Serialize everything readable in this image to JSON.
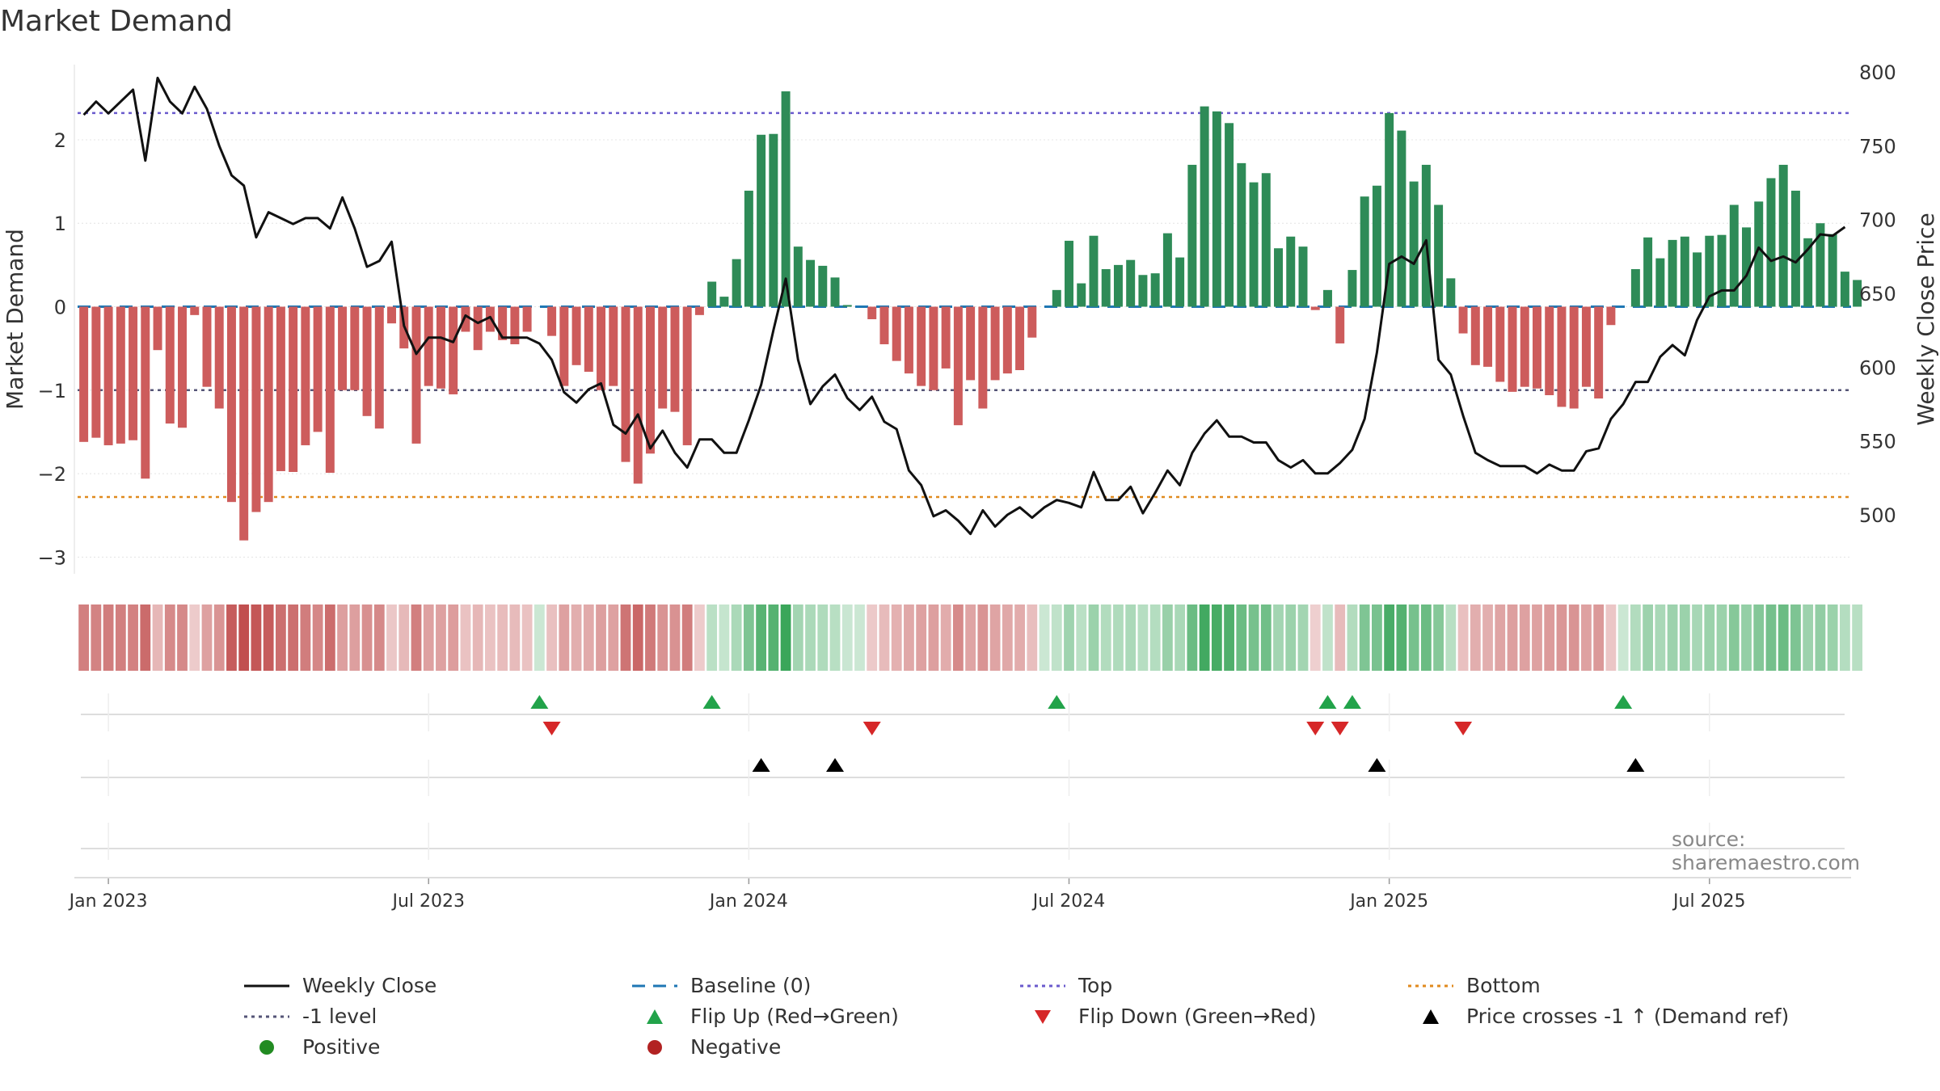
{
  "title": "Market Demand",
  "source": "source: sharemaestro.com",
  "colors": {
    "positive": "#2e8b57",
    "negative": "#cd5c5c",
    "price_line": "#111111",
    "baseline": "#1f77b4",
    "top_line": "#6a5acd",
    "minus1_line": "#555577",
    "bottom_line": "#e08a1e",
    "flip_up": "#22a34a",
    "flip_down": "#d62728",
    "cross": "#000000",
    "legend_positive": "#228b22",
    "legend_negative": "#b22222"
  },
  "legend": {
    "weekly_close": "Weekly Close",
    "baseline": "Baseline (0)",
    "top": "Top",
    "bottom": "Bottom",
    "minus1": "-1 level",
    "flip_up": "Flip Up (Red→Green)",
    "flip_down": "Flip Down (Green→Red)",
    "price_cross": "Price crosses -1 ↑ (Demand ref)",
    "positive": "Positive",
    "negative": "Negative"
  },
  "chart_data": {
    "type": "bar",
    "title": "Market Demand",
    "ylabel": "Market Demand",
    "y2label": "Weekly Close Price",
    "ylim": [
      -3.2,
      2.9
    ],
    "y2lim": [
      460,
      805
    ],
    "yticks": [
      -3,
      -2,
      -1,
      0,
      1,
      2
    ],
    "y2ticks": [
      500,
      550,
      600,
      650,
      700,
      750,
      800
    ],
    "xticks": [
      "Jan 2023",
      "Jul 2023",
      "Jan 2024",
      "Jul 2024",
      "Jan 2025",
      "Jul 2025"
    ],
    "xtick_weeks": [
      2,
      28,
      54,
      80,
      106,
      132
    ],
    "reference_levels": {
      "top": 2.32,
      "minus1": -1.0,
      "bottom": -2.28,
      "baseline": 0
    },
    "weeks": 144,
    "demand": [
      -1.62,
      -1.57,
      -1.66,
      -1.64,
      -1.6,
      -2.06,
      -0.52,
      -1.4,
      -1.45,
      -0.1,
      -0.96,
      -1.22,
      -2.34,
      -2.8,
      -2.46,
      -2.34,
      -1.97,
      -1.98,
      -1.66,
      -1.5,
      -1.99,
      -1.0,
      -1.0,
      -1.31,
      -1.46,
      -0.2,
      -0.5,
      -1.64,
      -0.95,
      -0.98,
      -1.05,
      -0.3,
      -0.52,
      -0.3,
      -0.4,
      -0.45,
      -0.3,
      0,
      -0.35,
      -0.95,
      -0.7,
      -0.78,
      -1.0,
      -0.95,
      -1.86,
      -2.12,
      -1.76,
      -1.22,
      -1.26,
      -1.66,
      -0.1,
      0.3,
      0.12,
      0.57,
      1.39,
      2.06,
      2.07,
      2.58,
      0.72,
      0.56,
      0.49,
      0.35,
      0.02,
      0,
      -0.15,
      -0.45,
      -0.65,
      -0.8,
      -0.95,
      -1.0,
      -0.74,
      -1.42,
      -0.88,
      -1.22,
      -0.88,
      -0.8,
      -0.76,
      -0.37,
      0,
      0.2,
      0.79,
      0.28,
      0.85,
      0.45,
      0.5,
      0.56,
      0.38,
      0.4,
      0.88,
      0.59,
      1.7,
      2.4,
      2.34,
      2.2,
      1.72,
      1.49,
      1.6,
      0.7,
      0.84,
      0.72,
      -0.04,
      0.2,
      -0.44,
      0.44,
      1.32,
      1.45,
      2.32,
      2.11,
      1.5,
      1.7,
      1.22,
      0.34,
      -0.32,
      -0.7,
      -0.72,
      -0.9,
      -1.02,
      -0.96,
      -0.98,
      -1.06,
      -1.2,
      -1.22,
      -0.96,
      -1.1,
      -0.22,
      0,
      0.45,
      0.83,
      0.58,
      0.8,
      0.84,
      0.65,
      0.85,
      0.86,
      1.22,
      0.95,
      1.26,
      1.54,
      1.7,
      1.39,
      0.82,
      1.0,
      0.87,
      0.42,
      0.32
    ],
    "weekly_close": [
      771,
      780,
      772,
      780,
      788,
      740,
      796,
      780,
      772,
      790,
      775,
      750,
      730,
      723,
      688,
      705,
      701,
      697,
      701,
      701,
      694,
      715,
      694,
      668,
      672,
      685,
      628,
      609,
      620,
      620,
      617,
      635,
      630,
      634,
      620,
      620,
      620,
      616,
      605,
      583,
      576,
      585,
      589,
      561,
      555,
      568,
      545,
      557,
      542,
      532,
      551,
      551,
      542,
      542,
      564,
      588,
      625,
      660,
      605,
      575,
      587,
      595,
      579,
      571,
      580,
      563,
      558,
      530,
      520,
      499,
      503,
      496,
      487,
      503,
      492,
      500,
      505,
      498,
      505,
      510,
      508,
      505,
      529,
      510,
      510,
      519,
      501,
      515,
      530,
      520,
      542,
      555,
      564,
      553,
      553,
      549,
      549,
      537,
      532,
      537,
      528,
      528,
      535,
      544,
      565,
      610,
      670,
      675,
      670,
      686,
      605,
      595,
      567,
      542,
      537,
      533,
      533,
      533,
      528,
      534,
      530,
      530,
      543,
      545,
      565,
      575,
      590,
      590,
      607,
      615,
      608,
      632,
      648,
      652,
      652,
      662,
      681,
      672,
      675,
      671,
      680,
      690,
      689,
      695
    ],
    "color_strip_note": "per-week demand heat strip (green = positive, red = negative, intensity = magnitude)",
    "flip_up_weeks": [
      37,
      51,
      79,
      101,
      103,
      125
    ],
    "flip_down_weeks": [
      38,
      64,
      100,
      102,
      112
    ],
    "price_cross_weeks": [
      55,
      61,
      105,
      126
    ]
  }
}
